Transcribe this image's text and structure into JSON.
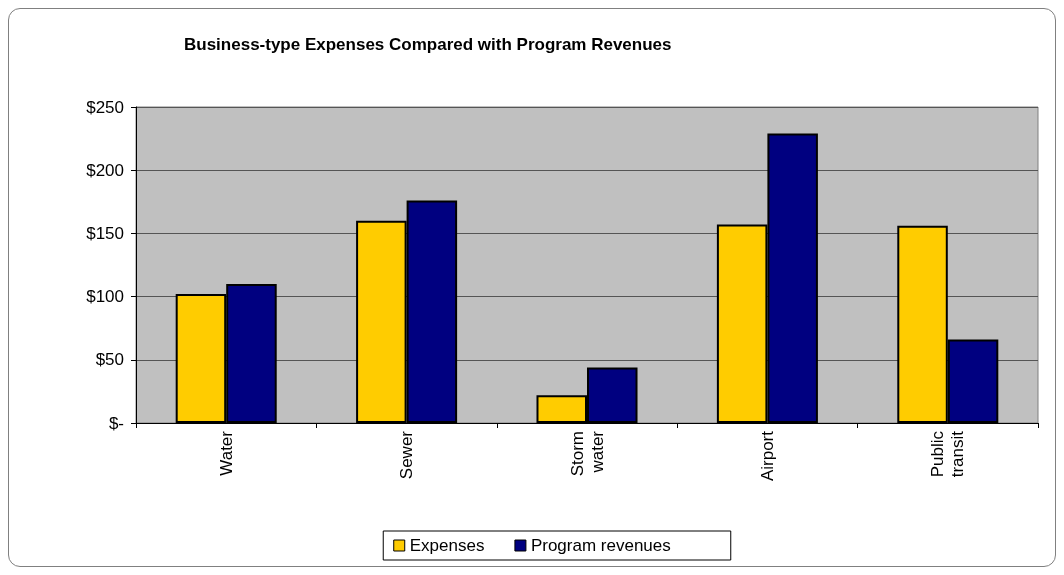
{
  "chart_data": {
    "type": "bar",
    "title": "Business-type Expenses Compared with Program Revenues",
    "categories": [
      "Water",
      "Sewer",
      "Storm water",
      "Airport",
      "Public transit"
    ],
    "series": [
      {
        "name": "Expenses",
        "color": "#ffcc00",
        "values": [
          102,
          160,
          22,
          157,
          156
        ]
      },
      {
        "name": "Program revenues",
        "color": "#000080",
        "values": [
          110,
          176,
          44,
          229,
          66
        ]
      }
    ],
    "ylim": [
      0,
      250
    ],
    "yticks": [
      {
        "value": 0,
        "label": "$-"
      },
      {
        "value": 50,
        "label": "$50"
      },
      {
        "value": 100,
        "label": "$100"
      },
      {
        "value": 150,
        "label": "$150"
      },
      {
        "value": 200,
        "label": "$200"
      },
      {
        "value": 250,
        "label": "$250"
      }
    ],
    "grid": "y",
    "legend": "bottom"
  }
}
